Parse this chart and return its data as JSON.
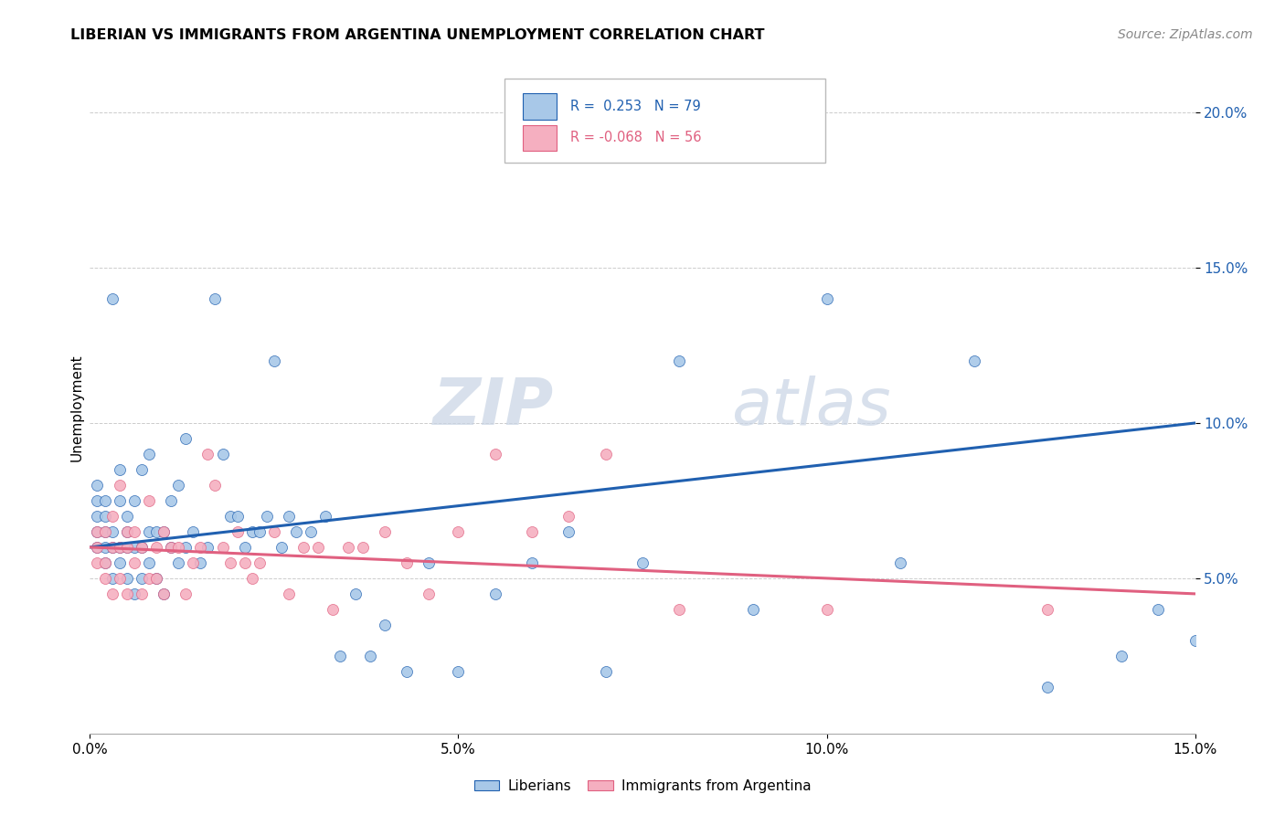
{
  "title": "LIBERIAN VS IMMIGRANTS FROM ARGENTINA UNEMPLOYMENT CORRELATION CHART",
  "source": "Source: ZipAtlas.com",
  "ylabel": "Unemployment",
  "xlim": [
    0.0,
    0.15
  ],
  "ylim": [
    0.0,
    0.21
  ],
  "liberian_color": "#a8c8e8",
  "argentina_color": "#f5afc0",
  "liberian_line_color": "#2060b0",
  "argentina_line_color": "#e06080",
  "R_liberian": 0.253,
  "N_liberian": 79,
  "R_argentina": -0.068,
  "N_argentina": 56,
  "liberian_x": [
    0.001,
    0.001,
    0.001,
    0.001,
    0.001,
    0.002,
    0.002,
    0.002,
    0.002,
    0.002,
    0.003,
    0.003,
    0.003,
    0.003,
    0.004,
    0.004,
    0.004,
    0.004,
    0.005,
    0.005,
    0.005,
    0.005,
    0.006,
    0.006,
    0.006,
    0.007,
    0.007,
    0.007,
    0.008,
    0.008,
    0.008,
    0.009,
    0.009,
    0.01,
    0.01,
    0.011,
    0.011,
    0.012,
    0.012,
    0.013,
    0.013,
    0.014,
    0.015,
    0.016,
    0.017,
    0.018,
    0.019,
    0.02,
    0.021,
    0.022,
    0.023,
    0.024,
    0.025,
    0.026,
    0.027,
    0.028,
    0.03,
    0.032,
    0.034,
    0.036,
    0.038,
    0.04,
    0.043,
    0.046,
    0.05,
    0.055,
    0.06,
    0.065,
    0.07,
    0.075,
    0.08,
    0.09,
    0.1,
    0.11,
    0.12,
    0.13,
    0.14,
    0.145,
    0.15
  ],
  "liberian_y": [
    0.06,
    0.065,
    0.07,
    0.075,
    0.08,
    0.055,
    0.06,
    0.065,
    0.07,
    0.075,
    0.05,
    0.06,
    0.065,
    0.14,
    0.055,
    0.06,
    0.075,
    0.085,
    0.05,
    0.06,
    0.065,
    0.07,
    0.045,
    0.06,
    0.075,
    0.05,
    0.06,
    0.085,
    0.055,
    0.065,
    0.09,
    0.05,
    0.065,
    0.045,
    0.065,
    0.06,
    0.075,
    0.055,
    0.08,
    0.06,
    0.095,
    0.065,
    0.055,
    0.06,
    0.14,
    0.09,
    0.07,
    0.07,
    0.06,
    0.065,
    0.065,
    0.07,
    0.12,
    0.06,
    0.07,
    0.065,
    0.065,
    0.07,
    0.025,
    0.045,
    0.025,
    0.035,
    0.02,
    0.055,
    0.02,
    0.045,
    0.055,
    0.065,
    0.02,
    0.055,
    0.12,
    0.04,
    0.14,
    0.055,
    0.12,
    0.015,
    0.025,
    0.04,
    0.03
  ],
  "argentina_x": [
    0.001,
    0.001,
    0.001,
    0.002,
    0.002,
    0.002,
    0.003,
    0.003,
    0.003,
    0.004,
    0.004,
    0.004,
    0.005,
    0.005,
    0.005,
    0.006,
    0.006,
    0.007,
    0.007,
    0.008,
    0.008,
    0.009,
    0.009,
    0.01,
    0.01,
    0.011,
    0.012,
    0.013,
    0.014,
    0.015,
    0.016,
    0.017,
    0.018,
    0.019,
    0.02,
    0.021,
    0.022,
    0.023,
    0.025,
    0.027,
    0.029,
    0.031,
    0.033,
    0.035,
    0.037,
    0.04,
    0.043,
    0.046,
    0.05,
    0.055,
    0.06,
    0.065,
    0.07,
    0.08,
    0.1,
    0.13
  ],
  "argentina_y": [
    0.055,
    0.06,
    0.065,
    0.05,
    0.055,
    0.065,
    0.045,
    0.06,
    0.07,
    0.05,
    0.06,
    0.08,
    0.045,
    0.06,
    0.065,
    0.055,
    0.065,
    0.045,
    0.06,
    0.05,
    0.075,
    0.05,
    0.06,
    0.045,
    0.065,
    0.06,
    0.06,
    0.045,
    0.055,
    0.06,
    0.09,
    0.08,
    0.06,
    0.055,
    0.065,
    0.055,
    0.05,
    0.055,
    0.065,
    0.045,
    0.06,
    0.06,
    0.04,
    0.06,
    0.06,
    0.065,
    0.055,
    0.045,
    0.065,
    0.09,
    0.065,
    0.07,
    0.09,
    0.04,
    0.04,
    0.04
  ]
}
